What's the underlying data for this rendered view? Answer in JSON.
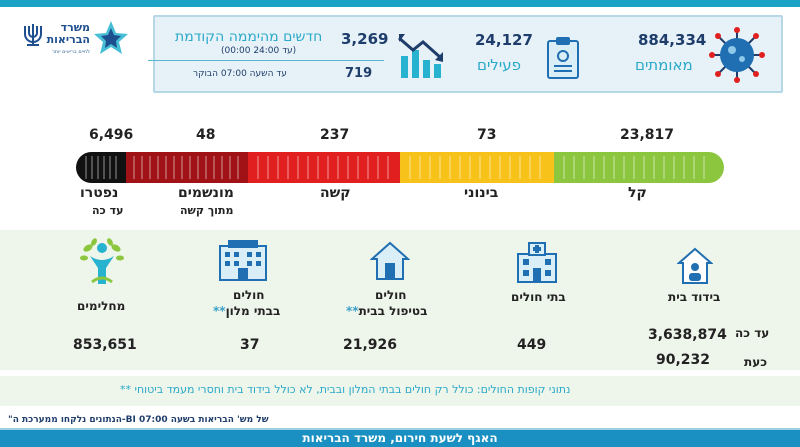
{
  "ministry": {
    "name_line1": "משרד",
    "name_line2": "הבריאות",
    "tagline": "לחיים בריאים יותר"
  },
  "summary": {
    "confirmed": {
      "value": "884,334",
      "label": "מאומתים"
    },
    "active": {
      "value": "24,127",
      "label": "פעילים"
    },
    "new_cases": {
      "value": "3,269",
      "title": "חדשים מהיממה הקודמת",
      "subtitle": "(00:00 עד 24:00)"
    },
    "since_morning": {
      "value": "719",
      "note": "עד השעה   07:00   הבוקר"
    }
  },
  "severity": {
    "mild": {
      "value": "23,817",
      "label": "קל"
    },
    "moderate": {
      "value": "73",
      "label": "בינוני"
    },
    "severe": {
      "value": "237",
      "label": "קשה"
    },
    "ventilated": {
      "value": "48",
      "label": "מונשמים",
      "sub": "מתוך קשה"
    },
    "deceased": {
      "value": "6,496",
      "label": "נפטרו",
      "sub": "עד כה"
    }
  },
  "categories": {
    "home_isolation": {
      "label": "בידוד בית",
      "total_label": "עד כה",
      "total": "3,638,874",
      "now_label": "כעת",
      "now": "90,232"
    },
    "hospitals": {
      "label": "בתי חולים",
      "value": "449"
    },
    "home_care": {
      "label_line1": "חולים",
      "label_line2": "בטיפול בבית",
      "stars": "**",
      "value": "21,926"
    },
    "hotels": {
      "label_line1": "חולים",
      "label_line2": "בבתי מלון",
      "stars": "**",
      "value": "37"
    },
    "recovered": {
      "label": "מחלימים",
      "value": "853,651"
    }
  },
  "footnote": "** נתוני קופות החולים: כולל רק חולים בבתי המלון ובבית, לא כולל בידוד בית וחסרי מעמד ביטוחי",
  "source_note": "\"הנתונים נלקחו ממערכת ה-BI של מש' הבריאות בשעה 07:00",
  "footer": "האגף לשעת חירום, משרד הבריאות",
  "colors": {
    "mild": "#8cc63f",
    "moderate": "#f7c21a",
    "severe": "#e21f1f",
    "ventilated": "#a11216",
    "deceased": "#111111",
    "accent": "#2aa9c9",
    "dark_blue": "#1f3d6b"
  }
}
